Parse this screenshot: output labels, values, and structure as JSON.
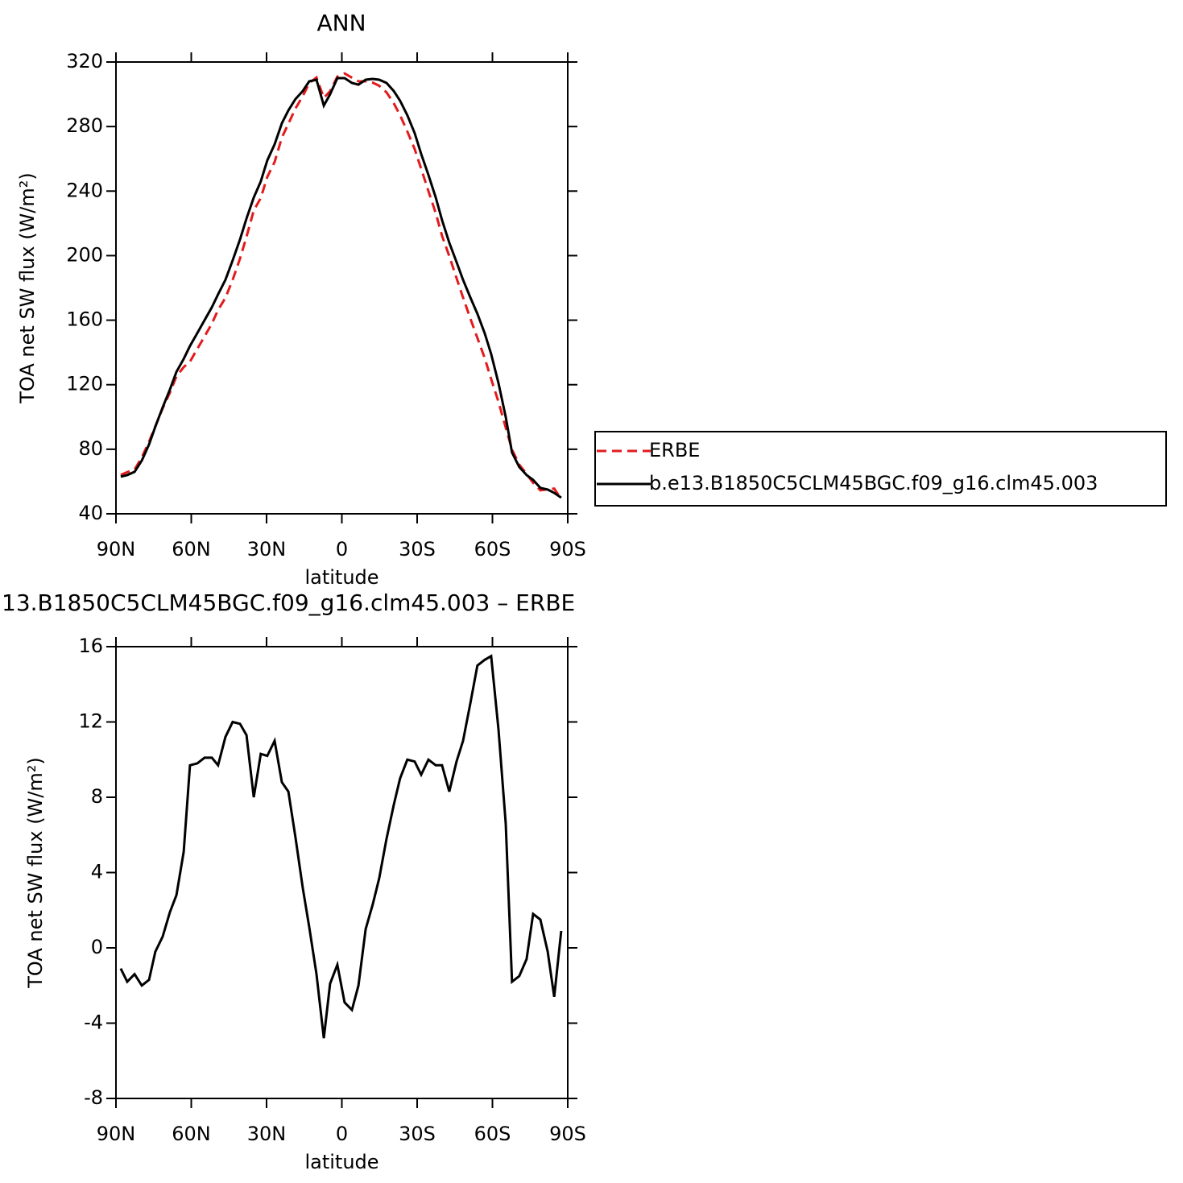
{
  "chart_data": [
    {
      "type": "line",
      "title": "ANN",
      "x_label": "latitude",
      "y_label": "TOA net SW flux (W/m²)",
      "x": [
        88.1,
        85.5,
        82.6,
        79.7,
        76.8,
        74.3,
        71.4,
        68.5,
        65.9,
        63.0,
        60.5,
        57.6,
        54.7,
        51.8,
        49.3,
        46.4,
        43.5,
        40.6,
        38.0,
        35.1,
        32.3,
        29.7,
        26.8,
        23.9,
        21.3,
        18.5,
        15.6,
        13.0,
        10.1,
        7.2,
        4.7,
        1.8,
        -1.1,
        -4.0,
        -6.6,
        -9.5,
        -12.3,
        -14.9,
        -17.8,
        -20.7,
        -23.2,
        -26.1,
        -29.0,
        -31.6,
        -34.5,
        -37.4,
        -39.9,
        -42.8,
        -45.7,
        -48.3,
        -51.2,
        -54.0,
        -56.9,
        -59.5,
        -62.4,
        -65.3,
        -67.8,
        -70.7,
        -73.6,
        -76.2,
        -79.1,
        -82.0,
        -84.6,
        -87.4
      ],
      "series": [
        {
          "name": "ERBE",
          "color": "#e41a1c",
          "dashed": true,
          "values": [
            64.1,
            65.8,
            67.4,
            75.0,
            84.7,
            94.2,
            105.4,
            115.1,
            125.2,
            130.9,
            134.3,
            142.2,
            149.9,
            157.9,
            166.3,
            173.8,
            185.0,
            198.1,
            211.7,
            228.0,
            235.7,
            248.8,
            258.0,
            273.2,
            281.7,
            291.1,
            298.8,
            306.9,
            310.4,
            297.8,
            301.9,
            310.9,
            312.9,
            310.3,
            308.0,
            308.0,
            307.2,
            305.3,
            301.2,
            294.4,
            287.0,
            277.0,
            266.1,
            253.8,
            240.0,
            226.3,
            212.3,
            199.7,
            186.1,
            174.0,
            161.0,
            149.0,
            136.7,
            123.5,
            109.4,
            93.4,
            79.8,
            70.5,
            64.6,
            59.2,
            54.5,
            55.2,
            55.6,
            49.1
          ]
        },
        {
          "name": "b.e13.B1850C5CLM45BGC.f09_g16.clm45.003",
          "color": "#000000",
          "dashed": false,
          "values": [
            63,
            64,
            66,
            73,
            83,
            94,
            106,
            117,
            128,
            136,
            144,
            152,
            160,
            168,
            176,
            185,
            197,
            210,
            223,
            236,
            246,
            259,
            269,
            282,
            290,
            297,
            302,
            308,
            309,
            293,
            300,
            310,
            310,
            307,
            306,
            309,
            309.5,
            309,
            307,
            302,
            296,
            287,
            276,
            263,
            250,
            236,
            222,
            208,
            196,
            185,
            174,
            164,
            152,
            139,
            121,
            100,
            78,
            69,
            64,
            61,
            56,
            55,
            53,
            50
          ]
        }
      ],
      "xlim": [
        90,
        -90
      ],
      "xticks": [
        {
          "value": 90,
          "label": "90N"
        },
        {
          "value": 60,
          "label": "60N"
        },
        {
          "value": 30,
          "label": "30N"
        },
        0,
        {
          "value": -30,
          "label": "30S"
        },
        {
          "value": -60,
          "label": "60S"
        },
        {
          "value": -90,
          "label": "90S"
        }
      ],
      "ylim": [
        40,
        320
      ],
      "yticks": [
        40,
        80,
        120,
        160,
        200,
        240,
        280,
        320
      ],
      "legend": "right"
    },
    {
      "type": "line",
      "title": "13.B1850C5CLM45BGC.f09_g16.clm45.003 – ERBE",
      "x_label": "latitude",
      "y_label": "TOA net SW flux (W/m²)",
      "x": [
        88.1,
        85.5,
        82.6,
        79.7,
        76.8,
        74.3,
        71.4,
        68.5,
        65.9,
        63.0,
        60.5,
        57.6,
        54.7,
        51.8,
        49.3,
        46.4,
        43.5,
        40.6,
        38.0,
        35.1,
        32.3,
        29.7,
        26.8,
        23.9,
        21.3,
        18.5,
        15.6,
        13.0,
        10.1,
        7.2,
        4.7,
        1.8,
        -1.1,
        -4.0,
        -6.6,
        -9.5,
        -12.3,
        -14.9,
        -17.8,
        -20.7,
        -23.2,
        -26.1,
        -29.0,
        -31.6,
        -34.5,
        -37.4,
        -39.9,
        -42.8,
        -45.7,
        -48.3,
        -51.2,
        -54.0,
        -56.9,
        -59.5,
        -62.4,
        -65.3,
        -67.8,
        -70.7,
        -73.6,
        -76.2,
        -79.1,
        -82.0,
        -84.6,
        -87.4
      ],
      "values": [
        -1.1,
        -1.8,
        -1.4,
        -2.0,
        -1.7,
        -0.2,
        0.6,
        1.9,
        2.8,
        5.1,
        9.7,
        9.8,
        10.1,
        10.1,
        9.7,
        11.2,
        12.0,
        11.9,
        11.3,
        8.0,
        10.3,
        10.2,
        11.0,
        8.8,
        8.3,
        5.9,
        3.2,
        1.1,
        -1.4,
        -4.8,
        -1.9,
        -0.9,
        -2.9,
        -3.3,
        -2.0,
        1.0,
        2.3,
        3.7,
        5.8,
        7.6,
        9.0,
        10.0,
        9.9,
        9.2,
        10.0,
        9.7,
        9.7,
        8.3,
        9.9,
        11.0,
        13.0,
        15.0,
        15.3,
        15.5,
        11.6,
        6.6,
        -1.8,
        -1.5,
        -0.6,
        1.8,
        1.5,
        -0.2,
        -2.6,
        0.9
      ],
      "color": "#000000",
      "xlim": [
        90,
        -90
      ],
      "xticks": [
        {
          "value": 90,
          "label": "90N"
        },
        {
          "value": 60,
          "label": "60N"
        },
        {
          "value": 30,
          "label": "30N"
        },
        0,
        {
          "value": -30,
          "label": "30S"
        },
        {
          "value": -60,
          "label": "60S"
        },
        {
          "value": -90,
          "label": "90S"
        }
      ],
      "ylim": [
        -8,
        16
      ],
      "yticks": [
        -8,
        -4,
        0,
        4,
        8,
        12,
        16
      ]
    }
  ]
}
